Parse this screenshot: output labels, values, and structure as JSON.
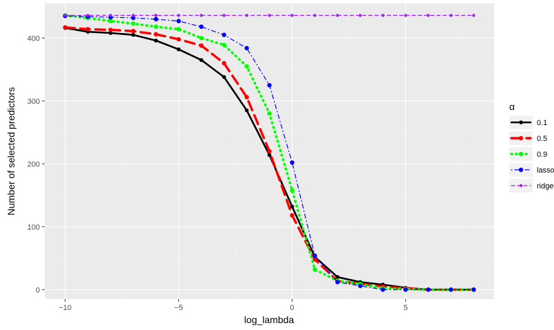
{
  "chart_data": {
    "type": "line",
    "title": "",
    "xlabel": "log_lambda",
    "ylabel": "Number of selected predictors",
    "xlim": [
      -10.9,
      8.9
    ],
    "ylim": [
      -15,
      455
    ],
    "x_ticks": [
      -10,
      -5,
      0,
      5
    ],
    "x_tick_labels": [
      "−10",
      "−5",
      "0",
      "5"
    ],
    "y_ticks": [
      0,
      100,
      200,
      300,
      400
    ],
    "y_tick_labels": [
      "0",
      "100",
      "200",
      "300",
      "400"
    ],
    "grid": true,
    "legend_title": "α",
    "legend_position": "right",
    "x": [
      -10,
      -9,
      -8,
      -7,
      -6,
      -5,
      -4,
      -3,
      -2,
      -1,
      0,
      1,
      2,
      3,
      4,
      5,
      6,
      7,
      8
    ],
    "series": [
      {
        "name": "0.1",
        "color": "#000000",
        "dash": "solid",
        "width": 2.6,
        "marker": 2.8,
        "values": [
          416,
          410,
          408,
          405,
          396,
          382,
          365,
          338,
          285,
          214,
          132,
          52,
          20,
          12,
          8,
          3,
          0,
          0,
          0
        ]
      },
      {
        "name": "0.5",
        "color": "#ff0000",
        "dash": "long",
        "width": 3.4,
        "marker": 3.2,
        "values": [
          417,
          414,
          413,
          411,
          406,
          398,
          388,
          360,
          306,
          220,
          118,
          48,
          14,
          9,
          5,
          2,
          0,
          0,
          0
        ]
      },
      {
        "name": "0.9",
        "color": "#00ff00",
        "dash": "dotted",
        "width": 3.6,
        "marker": 3.2,
        "values": [
          436,
          432,
          427,
          423,
          418,
          414,
          400,
          389,
          355,
          280,
          158,
          32,
          14,
          9,
          2,
          1,
          0,
          0,
          0
        ]
      },
      {
        "name": "lasso",
        "color": "#0000ff",
        "dash": "dotdash",
        "width": 1.2,
        "marker": 3.2,
        "values": [
          435,
          434,
          433,
          432,
          430,
          427,
          418,
          405,
          384,
          325,
          202,
          54,
          12,
          6,
          0,
          0,
          0,
          0,
          0
        ]
      },
      {
        "name": "ridge",
        "color": "#a020f0",
        "dash": "dashed",
        "width": 1.2,
        "marker": 2.2,
        "values": [
          436,
          436,
          436,
          436,
          436,
          436,
          436,
          436,
          436,
          436,
          436,
          436,
          436,
          436,
          436,
          436,
          436,
          436,
          436
        ]
      }
    ]
  }
}
